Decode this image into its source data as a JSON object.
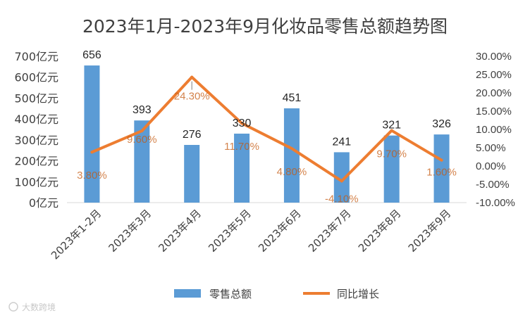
{
  "chart_data": {
    "type": "bar+line",
    "title": "2023年1月-2023年9月化妆品零售总额趋势图",
    "categories": [
      "2023年1-2月",
      "2023年3月",
      "2023年4月",
      "2023年5月",
      "2023年6月",
      "2023年7月",
      "2023年8月",
      "2023年9月"
    ],
    "series": [
      {
        "name": "零售总额",
        "type": "bar",
        "axis": "left",
        "values": [
          656,
          393,
          276,
          330,
          451,
          241,
          321,
          326
        ],
        "labels": [
          "656",
          "393",
          "276",
          "330",
          "451",
          "241",
          "321",
          "326"
        ],
        "color": "#5b9bd5"
      },
      {
        "name": "同比增长",
        "type": "line",
        "axis": "right",
        "values": [
          3.8,
          9.6,
          24.3,
          11.7,
          4.8,
          -4.1,
          9.7,
          1.6
        ],
        "labels": [
          "3.80%",
          "9.60%",
          "24.30%",
          "11.70%",
          "4.80%",
          "-4.10%",
          "9.70%",
          "1.60%"
        ],
        "color": "#ed7d31"
      }
    ],
    "yleft": {
      "ylim": [
        0,
        700
      ],
      "ticks": [
        0,
        100,
        200,
        300,
        400,
        500,
        600,
        700
      ],
      "tick_labels": [
        "0亿元",
        "100亿元",
        "200亿元",
        "300亿元",
        "400亿元",
        "500亿元",
        "600亿元",
        "700亿元"
      ]
    },
    "yright": {
      "ylim": [
        -10,
        30
      ],
      "ticks": [
        -10,
        -5,
        0,
        5,
        10,
        15,
        20,
        25,
        30
      ],
      "tick_labels": [
        "-10.00%",
        "-5.00%",
        "0.00%",
        "5.00%",
        "10.00%",
        "15.00%",
        "20.00%",
        "25.00%",
        "30.00%"
      ]
    },
    "grid": false,
    "legend": "bottom"
  },
  "watermark": "大数跨境"
}
